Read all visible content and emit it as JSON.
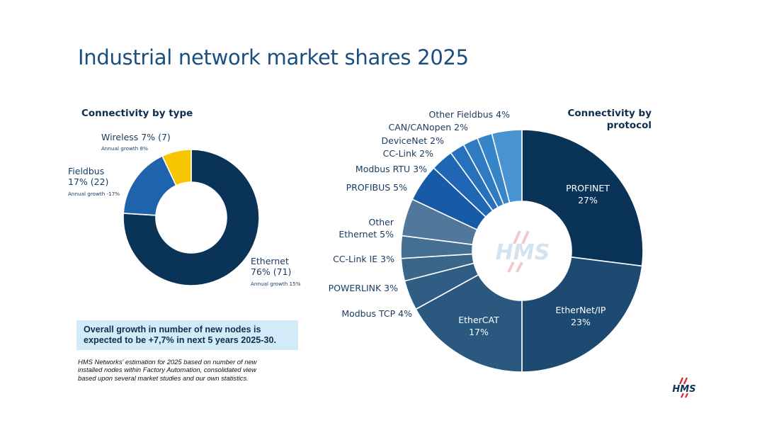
{
  "title": "Industrial network market shares 2025",
  "callout": [
    "Overall growth in number of new nodes is",
    "expected to be +7,7% in next 5 years 2025-30."
  ],
  "footnote": [
    "HMS Networks' estimation for 2025 based on number of new",
    "installed nodes within Factory Automation, consolidated view",
    "based upon several market studies and our own statistics."
  ],
  "logo_text": "HMS",
  "chart_data": [
    {
      "type": "donut",
      "title": "Connectivity by type",
      "slices": [
        {
          "label": "Ethernet",
          "value": 76,
          "count": 71,
          "growth": "Annual growth 15%",
          "color": "#0a3457"
        },
        {
          "label": "Fieldbus",
          "value": 17,
          "count": 22,
          "growth": "Annual growth -17%",
          "color": "#1f63ad"
        },
        {
          "label": "Wireless",
          "value": 7,
          "count": 7,
          "growth": "Annual growth 8%",
          "color": "#f7c600"
        }
      ],
      "labels": [
        {
          "lines": [
            "Ethernet",
            "76% (71)"
          ],
          "sub": "Annual growth 15%"
        },
        {
          "lines": [
            "Fieldbus",
            "17% (22)"
          ],
          "sub": "Annual growth -17%"
        },
        {
          "lines": [
            "Wireless 7% (7)"
          ],
          "sub": "Annual growth 8%"
        }
      ]
    },
    {
      "type": "donut",
      "title": "Connectivity by protocol",
      "title_lines": [
        "Connectivity by",
        "protocol"
      ],
      "center_watermark": "HMS",
      "slices": [
        {
          "label": "PROFINET",
          "value": 27,
          "color": "#0a3457"
        },
        {
          "label": "EtherNet/IP",
          "value": 23,
          "color": "#1c4a70"
        },
        {
          "label": "EtherCAT",
          "value": 17,
          "color": "#2a587f"
        },
        {
          "label": "Modbus TCP",
          "value": 4,
          "color": "#305d84"
        },
        {
          "label": "POWERLINK",
          "value": 3,
          "color": "#3a6689"
        },
        {
          "label": "CC-Link IE",
          "value": 3,
          "color": "#446f91"
        },
        {
          "label": "Other Ethernet",
          "value": 5,
          "color": "#51779a"
        },
        {
          "label": "PROFIBUS",
          "value": 5,
          "color": "#175aa7"
        },
        {
          "label": "Modbus RTU",
          "value": 3,
          "color": "#1f66b4"
        },
        {
          "label": "CC-Link",
          "value": 2,
          "color": "#2771bc"
        },
        {
          "label": "DeviceNet",
          "value": 2,
          "color": "#2e7bc3"
        },
        {
          "label": "CAN/CANopen",
          "value": 2,
          "color": "#3785c9"
        },
        {
          "label": "Other Fieldbus",
          "value": 4,
          "color": "#4a93d1"
        }
      ],
      "labels": [
        {
          "lines": [
            "PROFINET",
            "27%"
          ]
        },
        {
          "lines": [
            "EtherNet/IP",
            "23%"
          ]
        },
        {
          "lines": [
            "EtherCAT",
            "17%"
          ]
        },
        {
          "lines": [
            "Modbus TCP 4%"
          ]
        },
        {
          "lines": [
            "POWERLINK 3%"
          ]
        },
        {
          "lines": [
            "CC-Link IE 3%"
          ]
        },
        {
          "lines": [
            "Other",
            "Ethernet 5%"
          ]
        },
        {
          "lines": [
            "PROFIBUS 5%"
          ]
        },
        {
          "lines": [
            "Modbus RTU 3%"
          ]
        },
        {
          "lines": [
            "CC-Link 2%"
          ]
        },
        {
          "lines": [
            "DeviceNet 2%"
          ]
        },
        {
          "lines": [
            "CAN/CANopen 2%"
          ]
        },
        {
          "lines": [
            "Other Fieldbus 4%"
          ]
        }
      ]
    }
  ]
}
